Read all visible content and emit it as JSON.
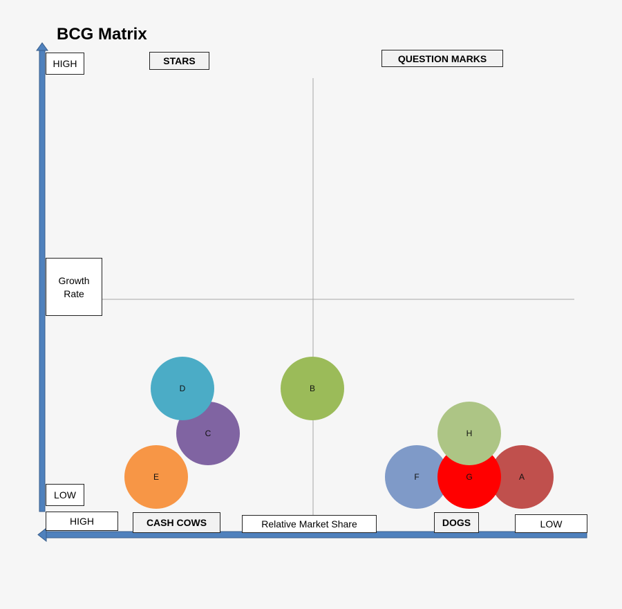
{
  "title": "BCG Matrix",
  "quadrants": {
    "stars": "STARS",
    "question_marks": "QUESTION MARKS",
    "cash_cows": "CASH COWS",
    "dogs": "DOGS"
  },
  "y_axis": {
    "high": "HIGH",
    "low": "LOW",
    "label_line1": "Growth",
    "label_line2": "Rate"
  },
  "x_axis": {
    "high": "HIGH",
    "low": "LOW",
    "label": "Relative Market Share"
  },
  "colors": {
    "axis": "#4f81bd",
    "axis_border": "#385d8a",
    "grid": "#a6a6a6"
  },
  "bubbles": [
    {
      "label": "A",
      "color": "#c0504d"
    },
    {
      "label": "B",
      "color": "#9bbb59"
    },
    {
      "label": "C",
      "color": "#8064a2"
    },
    {
      "label": "D",
      "color": "#4bacc6"
    },
    {
      "label": "E",
      "color": "#f79646"
    },
    {
      "label": "F",
      "color": "#7f9ac8"
    },
    {
      "label": "G",
      "color": "#ff0000"
    },
    {
      "label": "H",
      "color": "#adc585"
    }
  ]
}
